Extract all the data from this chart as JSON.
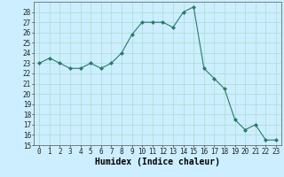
{
  "x": [
    0,
    1,
    2,
    3,
    4,
    5,
    6,
    7,
    8,
    9,
    10,
    11,
    12,
    13,
    14,
    15,
    16,
    17,
    18,
    19,
    20,
    21,
    22,
    23
  ],
  "y": [
    23,
    23.5,
    23,
    22.5,
    22.5,
    23,
    22.5,
    23,
    24,
    25.8,
    27,
    27,
    27,
    26.5,
    28,
    28.5,
    22.5,
    21.5,
    20.5,
    17.5,
    16.5,
    17,
    15.5,
    15.5
  ],
  "xlabel": "Humidex (Indice chaleur)",
  "ylim": [
    15,
    29
  ],
  "xlim": [
    -0.5,
    23.5
  ],
  "yticks": [
    15,
    16,
    17,
    18,
    19,
    20,
    21,
    22,
    23,
    24,
    25,
    26,
    27,
    28
  ],
  "xticks": [
    0,
    1,
    2,
    3,
    4,
    5,
    6,
    7,
    8,
    9,
    10,
    11,
    12,
    13,
    14,
    15,
    16,
    17,
    18,
    19,
    20,
    21,
    22,
    23
  ],
  "line_color": "#2a7a6a",
  "bg_color": "#cceeff",
  "grid_color": "#aaddcc",
  "tick_fontsize": 5.5,
  "label_fontsize": 7
}
